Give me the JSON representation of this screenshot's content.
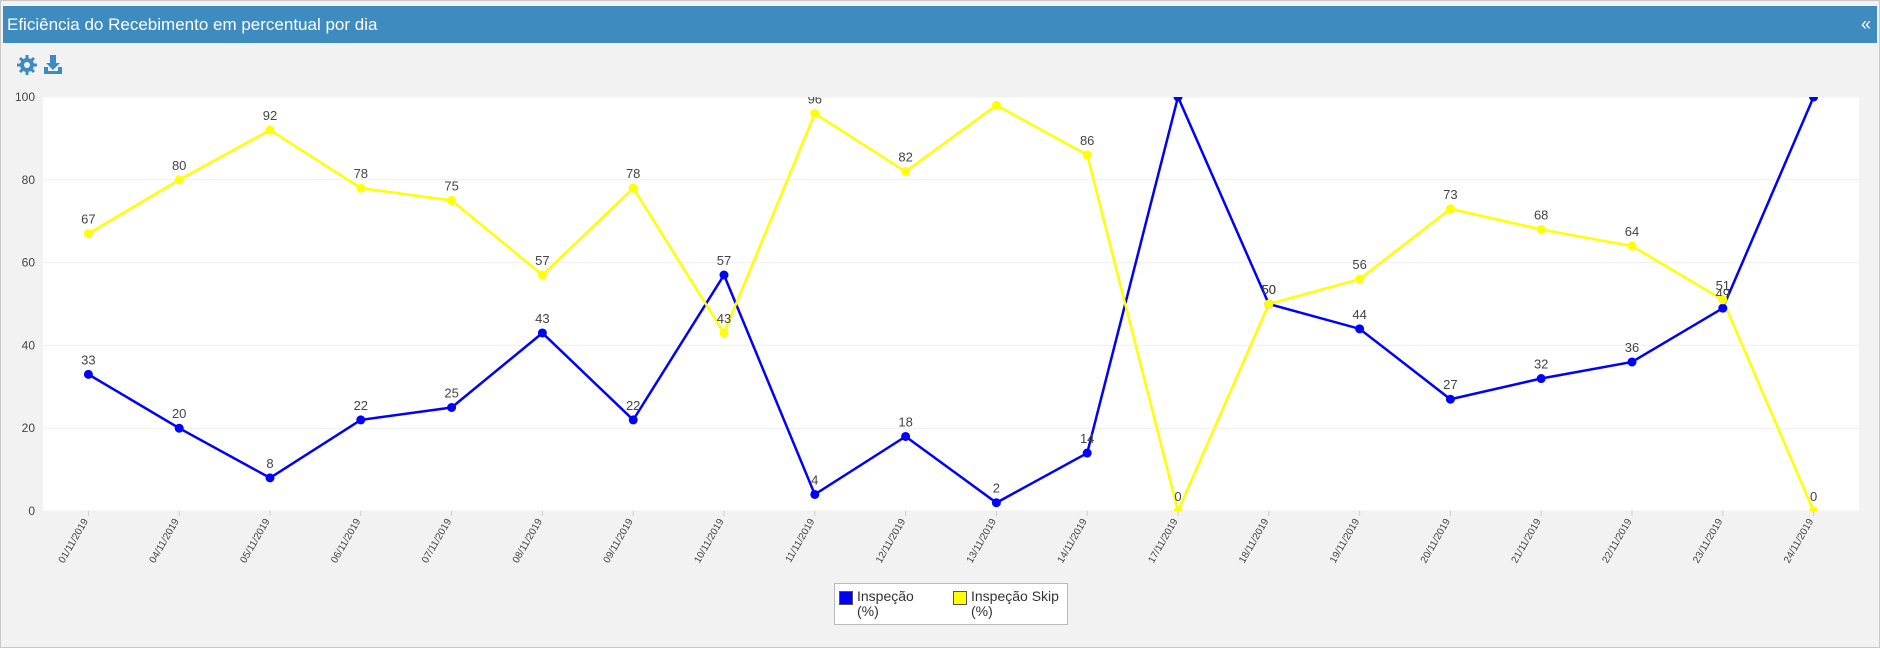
{
  "header": {
    "collapse": "«"
  },
  "chart_data": {
    "type": "line",
    "title": "Eficiência do Recebimento em percentual por dia",
    "categories": [
      "01/11/2019",
      "04/11/2019",
      "05/11/2019",
      "06/11/2019",
      "07/11/2019",
      "08/11/2019",
      "09/11/2019",
      "10/11/2019",
      "11/11/2019",
      "12/11/2019",
      "13/11/2019",
      "14/11/2019",
      "17/11/2019",
      "18/11/2019",
      "19/11/2019",
      "20/11/2019",
      "21/11/2019",
      "22/11/2019",
      "23/11/2019",
      "24/11/2019"
    ],
    "series": [
      {
        "name": "Inspeção (%)",
        "color": "#0000ff",
        "values": [
          33,
          20,
          8,
          22,
          25,
          43,
          22,
          57,
          4,
          18,
          2,
          14,
          100,
          50,
          44,
          27,
          32,
          36,
          49,
          100
        ]
      },
      {
        "name": "Inspeção Skip (%)",
        "color": "#ffff00",
        "values": [
          67,
          80,
          92,
          78,
          75,
          57,
          78,
          43,
          96,
          82,
          98,
          86,
          0,
          50,
          56,
          73,
          68,
          64,
          51,
          0
        ]
      }
    ],
    "ylim": [
      0,
      100
    ],
    "yticks": [
      0,
      20,
      40,
      60,
      80,
      100
    ],
    "grid": true,
    "legend": "bottom"
  }
}
